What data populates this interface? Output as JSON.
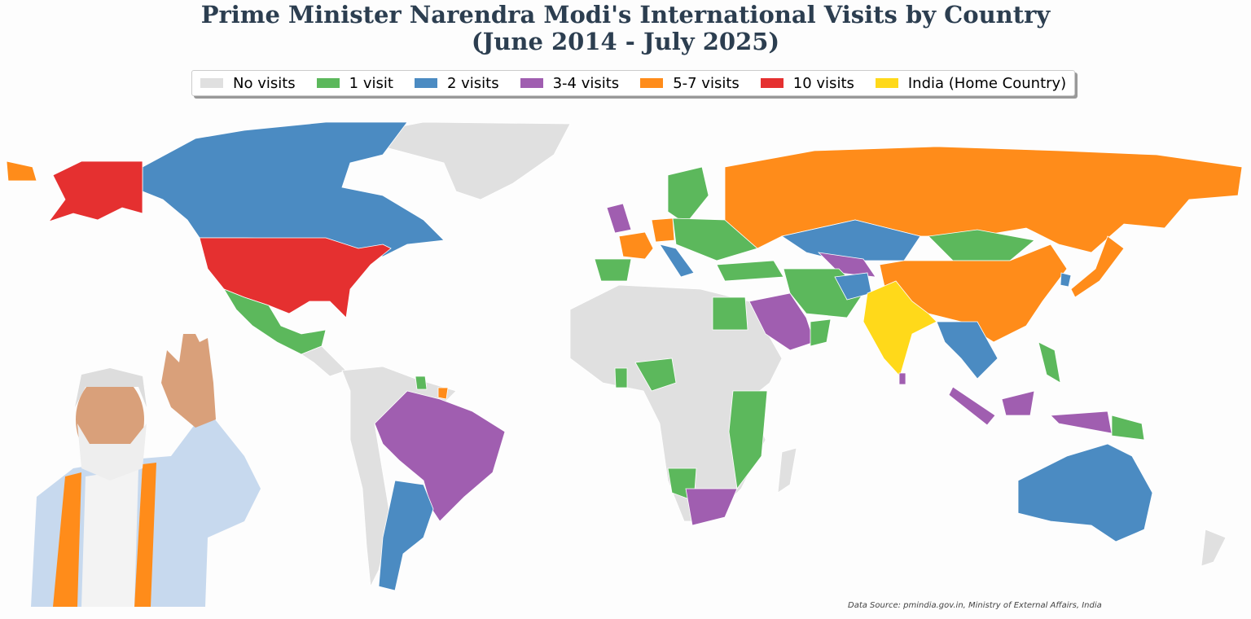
{
  "title": [
    "Prime Minister Narendra Modi's International Visits by Country",
    "(June 2014 - July 2025)"
  ],
  "legend": [
    {
      "label": "No visits",
      "color": "#e0e0e0"
    },
    {
      "label": "1 visit",
      "color": "#5cb85c"
    },
    {
      "label": "2 visits",
      "color": "#4b8bc2"
    },
    {
      "label": "3-4 visits",
      "color": "#a05eb0"
    },
    {
      "label": "5-7 visits",
      "color": "#ff8c1a"
    },
    {
      "label": "10 visits",
      "color": "#e53030"
    },
    {
      "label": "India (Home Country)",
      "color": "#ffd91a"
    }
  ],
  "source": "Data Source: pmindia.gov.in, Ministry of External Affairs, India"
}
